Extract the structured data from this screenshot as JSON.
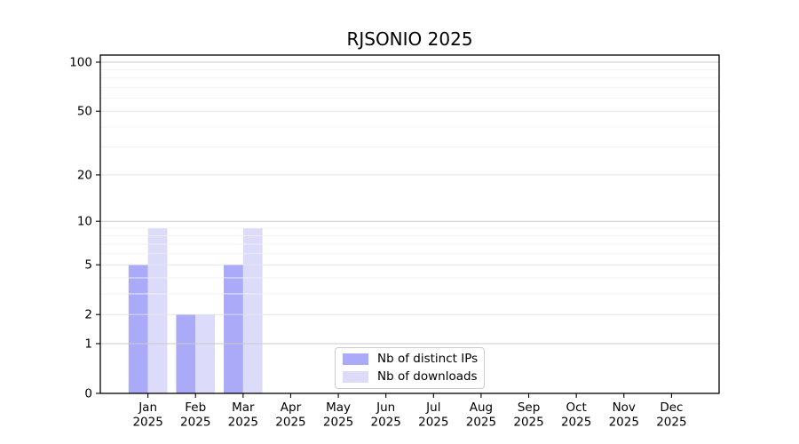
{
  "chart_data": {
    "type": "bar",
    "title": "RJSONIO 2025",
    "months": [
      "Jan",
      "Feb",
      "Mar",
      "Apr",
      "May",
      "Jun",
      "Jul",
      "Aug",
      "Sep",
      "Oct",
      "Nov",
      "Dec"
    ],
    "year": "2025",
    "series": [
      {
        "key": "distinct-ips",
        "name": "Nb of distinct IPs",
        "color": "#aaaaf8",
        "values": [
          5,
          2,
          5,
          0,
          0,
          0,
          0,
          0,
          0,
          0,
          0,
          0
        ]
      },
      {
        "key": "downloads",
        "name": "Nb of downloads",
        "color": "#dcdcfa",
        "values": [
          9,
          2,
          9,
          0,
          0,
          0,
          0,
          0,
          0,
          0,
          0,
          0
        ]
      }
    ],
    "xlabel": "",
    "ylabel": "",
    "yscale": "log(1+x)",
    "yticks": [
      0,
      1,
      2,
      5,
      10,
      20,
      50,
      100
    ],
    "ylim": [
      0,
      110
    ],
    "grid": {
      "major": [
        1,
        10,
        100
      ],
      "mid": [
        2,
        5,
        20,
        50
      ],
      "minor": [
        3,
        4,
        6,
        7,
        8,
        9,
        30,
        40,
        60,
        70,
        80,
        90
      ]
    },
    "legend": {
      "position": "bottom-center"
    }
  },
  "colors": {
    "background": "#ffffff",
    "spine": "#000000",
    "tick": "#000000",
    "grid_major": "#c9c9c9",
    "grid_mid": "#e2e2e2",
    "grid_minor": "#f0f0f0"
  }
}
